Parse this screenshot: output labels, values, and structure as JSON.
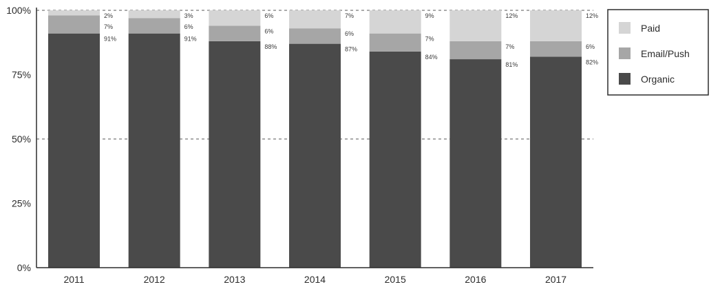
{
  "chart_data": {
    "type": "bar",
    "stacked": true,
    "categories": [
      "2011",
      "2012",
      "2013",
      "2014",
      "2015",
      "2016",
      "2017"
    ],
    "series": [
      {
        "name": "Organic",
        "values": [
          91,
          91,
          88,
          87,
          84,
          81,
          82
        ],
        "labels": [
          "91%",
          "91%",
          "88%",
          "87%",
          "84%",
          "81%",
          "82%"
        ]
      },
      {
        "name": "Email/Push",
        "values": [
          7,
          6,
          6,
          6,
          7,
          7,
          6
        ],
        "labels": [
          "7%",
          "6%",
          "6%",
          "6%",
          "7%",
          "7%",
          "6%"
        ]
      },
      {
        "name": "Paid",
        "values": [
          2,
          3,
          6,
          7,
          9,
          12,
          12
        ],
        "labels": [
          "2%",
          "3%",
          "6%",
          "7%",
          "9%",
          "12%",
          "12%"
        ]
      }
    ],
    "y_ticks": [
      {
        "value": 0,
        "label": "0%"
      },
      {
        "value": 25,
        "label": "25%"
      },
      {
        "value": 50,
        "label": "50%"
      },
      {
        "value": 75,
        "label": "75%"
      },
      {
        "value": 100,
        "label": "100%"
      }
    ],
    "dashed_gridlines": [
      50,
      100
    ],
    "ylim": [
      0,
      100
    ],
    "legend": {
      "position": "right",
      "order": [
        "Paid",
        "Email/Push",
        "Organic"
      ]
    },
    "colors": {
      "Organic": "#4a4a4a",
      "Email/Push": "#a6a6a6",
      "Paid": "#d5d5d5"
    },
    "title": "",
    "xlabel": "",
    "ylabel": ""
  }
}
